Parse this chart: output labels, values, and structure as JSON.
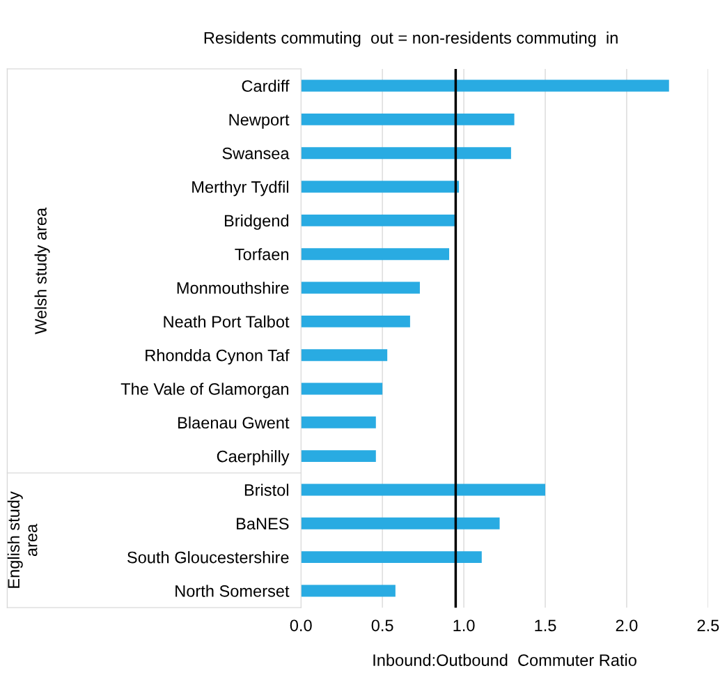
{
  "chart_data": {
    "type": "bar",
    "orientation": "horizontal",
    "categories": [
      "Cardiff",
      "Newport",
      "Swansea",
      "Merthyr Tydfil",
      "Bridgend",
      "Torfaen",
      "Monmouthshire",
      "Neath Port Talbot",
      "Rhondda Cynon Taf",
      "The Vale of Glamorgan",
      "Blaenau Gwent",
      "Caerphilly",
      "Bristol",
      "BaNES",
      "South Gloucestershire",
      "North Somerset"
    ],
    "values": [
      2.26,
      1.31,
      1.29,
      0.97,
      0.95,
      0.91,
      0.73,
      0.67,
      0.53,
      0.5,
      0.46,
      0.46,
      1.5,
      1.22,
      1.11,
      0.58
    ],
    "color": "#29abe2",
    "xlabel": "Inbound:Outbound  Commuter Ratio",
    "xlim": [
      0,
      2.5
    ],
    "xticks": [
      {
        "value": 0,
        "label": "0.0"
      },
      {
        "value": 0.5,
        "label": "0.5"
      },
      {
        "value": 1,
        "label": "1.0"
      },
      {
        "value": 1.5,
        "label": "1.5"
      },
      {
        "value": 2,
        "label": "2.0"
      },
      {
        "value": 2.5,
        "label": "2.5"
      }
    ],
    "grid": "x",
    "ref_lines": [
      {
        "axis": "x",
        "value": 0.95,
        "label": "Residents commuting  out = non-residents commuting  in",
        "color": "#000000"
      }
    ],
    "annotations": [
      "Welsh study area",
      "English study area"
    ]
  }
}
